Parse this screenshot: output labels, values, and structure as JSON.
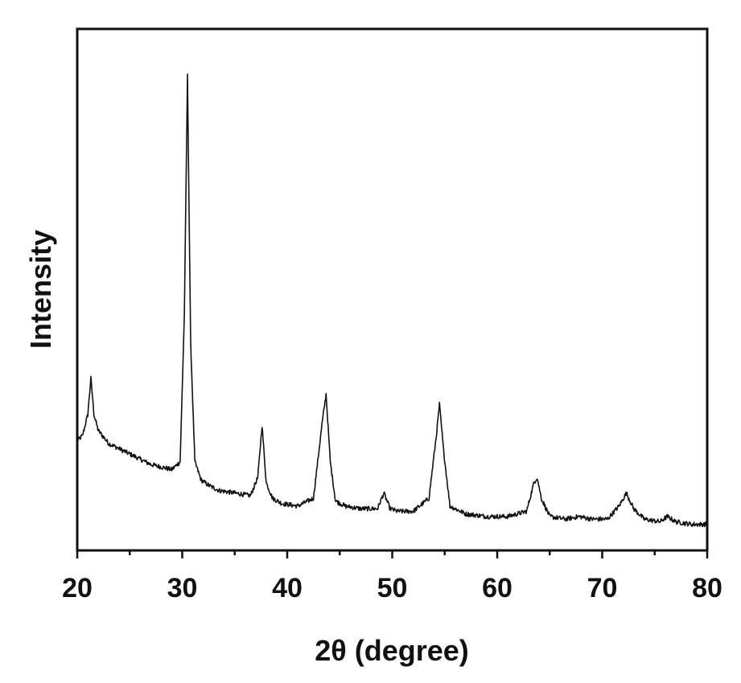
{
  "chart_data": {
    "type": "line",
    "title": "",
    "xlabel": "2θ (degree)",
    "ylabel": "Intensity",
    "xlim": [
      20,
      80
    ],
    "ylim": [
      0,
      100
    ],
    "x_ticks": [
      20,
      30,
      40,
      50,
      60,
      70,
      80
    ],
    "x_tick_labels": [
      "20",
      "30",
      "40",
      "50",
      "60",
      "70",
      "80"
    ],
    "y_tick_labels_shown": false,
    "grid": false,
    "legend": "none",
    "line_color": "#111111",
    "series": [
      {
        "x": [
          20,
          20.5,
          21,
          21.3,
          21.6,
          22,
          23,
          24,
          25,
          26,
          27,
          28,
          29,
          29.8,
          30.2,
          30.5,
          30.8,
          31.2,
          31.8,
          32.5,
          33.5,
          35,
          36.5,
          37.2,
          37.6,
          38,
          38.6,
          39.5,
          41,
          42.5,
          43.3,
          43.7,
          44.1,
          44.6,
          45.5,
          47,
          48.6,
          49.2,
          49.8,
          50.5,
          52,
          53.5,
          54.2,
          54.5,
          54.9,
          55.5,
          57,
          59,
          61,
          62.8,
          63.5,
          63.8,
          64.2,
          65,
          66.5,
          67.8,
          69,
          70.5,
          71.6,
          72.3,
          73,
          74,
          75.5,
          76.2,
          77,
          78.5,
          80
        ],
        "y": [
          21,
          22,
          26,
          33,
          26,
          23,
          20.5,
          19.5,
          18.5,
          17.5,
          16.5,
          16,
          15.5,
          17,
          45,
          91,
          40,
          17,
          13.5,
          12.5,
          11.5,
          11,
          10.5,
          14,
          24,
          13,
          10,
          9,
          8.5,
          10,
          24,
          30,
          17,
          9.5,
          8.5,
          8,
          8,
          11,
          8,
          7.5,
          7.5,
          10,
          22,
          28,
          19,
          8.5,
          7,
          6.5,
          6.5,
          7.5,
          13,
          14,
          10,
          6.5,
          6,
          6.5,
          6,
          6,
          8.5,
          11,
          8,
          6,
          5.5,
          6.5,
          5.5,
          5,
          5
        ]
      }
    ]
  }
}
